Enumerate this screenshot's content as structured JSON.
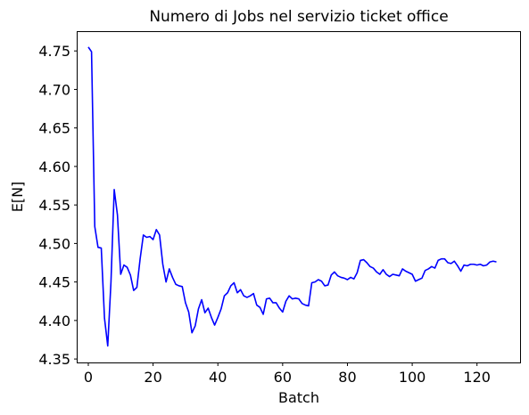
{
  "chart_data": {
    "type": "line",
    "title": "Numero di Jobs nel servizio ticket office",
    "xlabel": "Batch",
    "ylabel": "E[N]",
    "xlim": [
      -3.3,
      133.3
    ],
    "ylim": [
      4.3455,
      4.7745
    ],
    "xticks": [
      0,
      20,
      40,
      60,
      80,
      100,
      120
    ],
    "yticks": [
      4.35,
      4.4,
      4.45,
      4.5,
      4.55,
      4.6,
      4.65,
      4.7,
      4.75
    ],
    "ytick_labels": [
      "4.35",
      "4.40",
      "4.45",
      "4.50",
      "4.55",
      "4.60",
      "4.65",
      "4.70",
      "4.75"
    ],
    "grid": false,
    "legend": "none",
    "series": [
      {
        "color": "#0000ff",
        "x": [
          0,
          1,
          2,
          3,
          4,
          5,
          6,
          7,
          8,
          9,
          10,
          11,
          12,
          13,
          14,
          15,
          16,
          17,
          18,
          19,
          20,
          21,
          22,
          23,
          24,
          25,
          26,
          27,
          28,
          29,
          30,
          31,
          32,
          33,
          34,
          35,
          36,
          37,
          38,
          39,
          40,
          41,
          42,
          43,
          44,
          45,
          46,
          47,
          48,
          49,
          50,
          51,
          52,
          53,
          54,
          55,
          56,
          57,
          58,
          59,
          60,
          61,
          62,
          63,
          64,
          65,
          66,
          67,
          68,
          69,
          70,
          71,
          72,
          73,
          74,
          75,
          76,
          77,
          78,
          79,
          80,
          81,
          82,
          83,
          84,
          85,
          86,
          87,
          88,
          89,
          90,
          91,
          92,
          93,
          94,
          95,
          96,
          97,
          98,
          99,
          100,
          101,
          102,
          103,
          104,
          105,
          106,
          107,
          108,
          109,
          110,
          111,
          112,
          113,
          114,
          115,
          116,
          117,
          118,
          119,
          120,
          121,
          122,
          123,
          124,
          125,
          126
        ],
        "y": [
          4.755,
          4.749,
          4.522,
          4.495,
          4.494,
          4.403,
          4.367,
          4.45,
          4.57,
          4.537,
          4.46,
          4.472,
          4.469,
          4.459,
          4.439,
          4.443,
          4.48,
          4.511,
          4.508,
          4.509,
          4.505,
          4.518,
          4.511,
          4.473,
          4.45,
          4.467,
          4.456,
          4.447,
          4.445,
          4.444,
          4.423,
          4.411,
          4.384,
          4.393,
          4.415,
          4.427,
          4.41,
          4.416,
          4.404,
          4.394,
          4.404,
          4.415,
          4.432,
          4.436,
          4.445,
          4.449,
          4.436,
          4.44,
          4.432,
          4.43,
          4.432,
          4.435,
          4.42,
          4.417,
          4.408,
          4.428,
          4.429,
          4.423,
          4.423,
          4.416,
          4.411,
          4.425,
          4.432,
          4.428,
          4.429,
          4.428,
          4.422,
          4.42,
          4.419,
          4.449,
          4.45,
          4.453,
          4.451,
          4.445,
          4.446,
          4.459,
          4.463,
          4.458,
          4.456,
          4.455,
          4.453,
          4.456,
          4.454,
          4.462,
          4.478,
          4.479,
          4.475,
          4.47,
          4.468,
          4.463,
          4.46,
          4.466,
          4.46,
          4.457,
          4.46,
          4.459,
          4.458,
          4.467,
          4.464,
          4.462,
          4.46,
          4.451,
          4.453,
          4.455,
          4.465,
          4.467,
          4.47,
          4.468,
          4.478,
          4.48,
          4.48,
          4.475,
          4.474,
          4.477,
          4.471,
          4.464,
          4.472,
          4.471,
          4.473,
          4.473,
          4.472,
          4.473,
          4.471,
          4.472,
          4.476,
          4.477,
          4.476
        ]
      }
    ]
  }
}
